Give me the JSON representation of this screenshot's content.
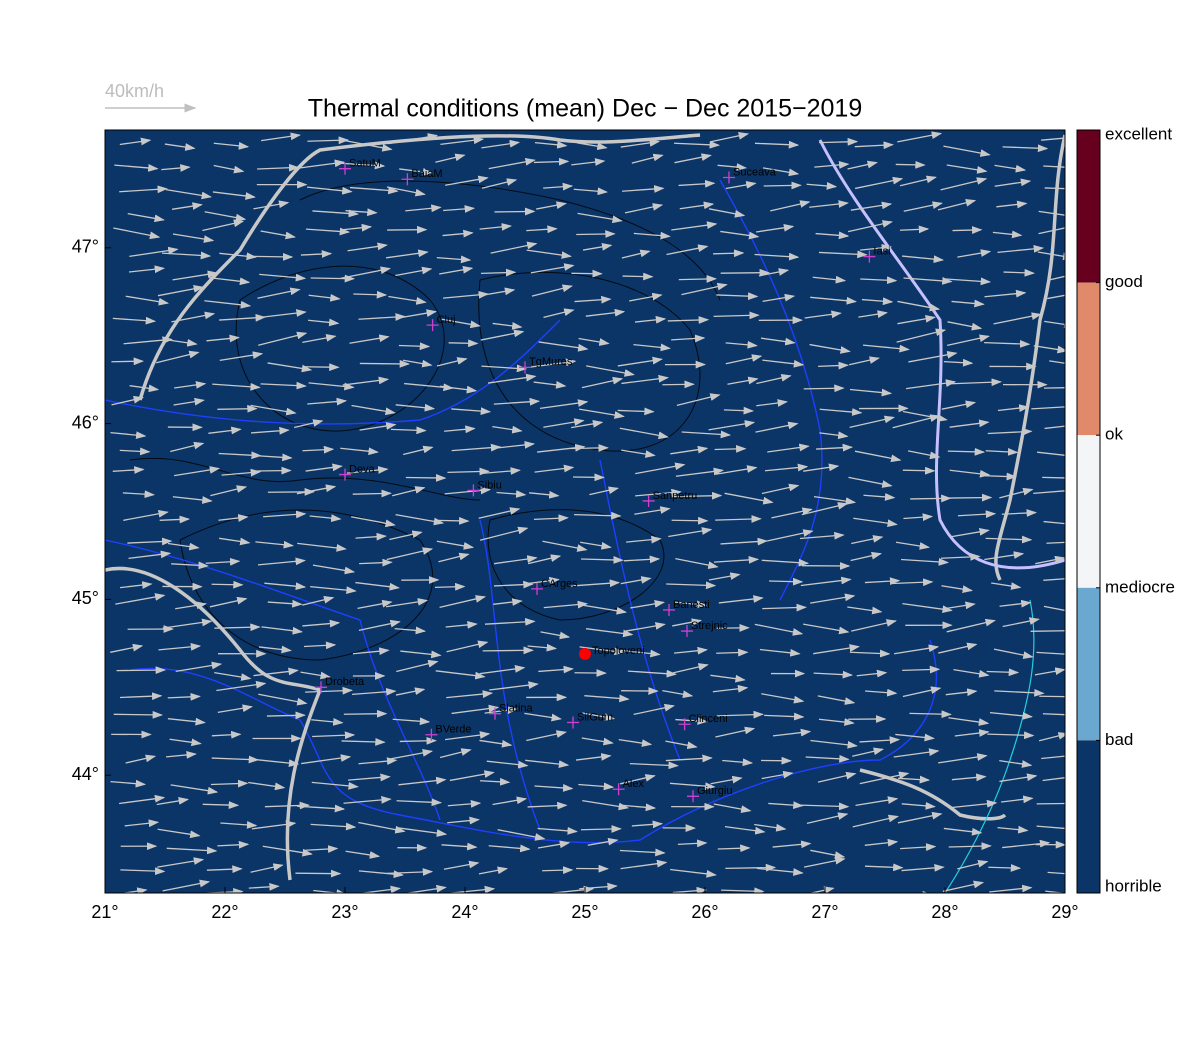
{
  "title": "Thermal conditions (mean) Dec − Dec  2015−2019",
  "wind_scale": "40km/h",
  "map": {
    "xlim": [
      21,
      29
    ],
    "ylim": [
      43.33,
      47.67
    ],
    "xticks": [
      {
        "value": 21,
        "label": "21°"
      },
      {
        "value": 22,
        "label": "22°"
      },
      {
        "value": 23,
        "label": "23°"
      },
      {
        "value": 24,
        "label": "24°"
      },
      {
        "value": 25,
        "label": "25°"
      },
      {
        "value": 26,
        "label": "26°"
      },
      {
        "value": 27,
        "label": "27°"
      },
      {
        "value": 28,
        "label": "28°"
      },
      {
        "value": 29,
        "label": "29°"
      }
    ],
    "yticks": [
      {
        "value": 44,
        "label": "44°"
      },
      {
        "value": 45,
        "label": "45°"
      },
      {
        "value": 46,
        "label": "46°"
      },
      {
        "value": 47,
        "label": "47°"
      }
    ],
    "cities": [
      {
        "name": "SatuM",
        "lon": 23.0,
        "lat": 47.45
      },
      {
        "name": "BaiaM",
        "lon": 23.52,
        "lat": 47.39
      },
      {
        "name": "Suceava",
        "lon": 26.2,
        "lat": 47.4
      },
      {
        "name": "Iasi",
        "lon": 27.37,
        "lat": 46.95
      },
      {
        "name": "Cluj",
        "lon": 23.73,
        "lat": 46.56
      },
      {
        "name": "TgMures",
        "lon": 24.5,
        "lat": 46.32
      },
      {
        "name": "Deva",
        "lon": 23.0,
        "lat": 45.71
      },
      {
        "name": "Sibiu",
        "lon": 24.07,
        "lat": 45.62
      },
      {
        "name": "Sanpetru",
        "lon": 25.53,
        "lat": 45.56
      },
      {
        "name": "CArges",
        "lon": 24.6,
        "lat": 45.06
      },
      {
        "name": "Banesti",
        "lon": 25.7,
        "lat": 44.94
      },
      {
        "name": "Strejnic",
        "lon": 25.85,
        "lat": 44.82
      },
      {
        "name": "Drobeta",
        "lon": 22.8,
        "lat": 44.5
      },
      {
        "name": "Slatina",
        "lon": 24.25,
        "lat": 44.35
      },
      {
        "name": "SilGum",
        "lon": 24.9,
        "lat": 44.3
      },
      {
        "name": "Clinceni",
        "lon": 25.83,
        "lat": 44.29
      },
      {
        "name": "BVerde",
        "lon": 23.72,
        "lat": 44.23
      },
      {
        "name": "Alex",
        "lon": 25.28,
        "lat": 43.92
      },
      {
        "name": "Giurgiu",
        "lon": 25.9,
        "lat": 43.88
      }
    ],
    "highlight": {
      "name": "Topoloveni",
      "lon": 25.0,
      "lat": 44.69,
      "color": "#ff0000"
    }
  },
  "colorbar": {
    "labels": [
      "excellent",
      "good",
      "ok",
      "mediocre",
      "bad",
      "horrible"
    ],
    "colors": [
      "#67001f",
      "#e08a6b",
      "#f4f5f7",
      "#6aa8cf",
      "#0b3566"
    ]
  }
}
